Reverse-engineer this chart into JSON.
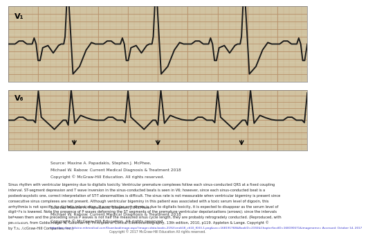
{
  "source_text_line1": "Source: Maxine A. Papadakis, Stephen J. McPhee,",
  "source_text_line2": "Michael W. Rabow: Current Medical Diagnosis & Treatment 2018",
  "source_text_line3": "Copyright © McGraw-Hill Education. All rights reserved.",
  "body_text_line1": "Sinus rhythm with ventricular bigeminy due to digitalis toxicity. Ventricular premature complexes follow each sinus-conducted QRS at a fixed coupling",
  "body_text_line2": "interval. ST-segment depression and T wave inversion in the sinus-conducted beats is seen in V6; however, since each sinus-conducted beat is a",
  "body_text_line3": "postextrasystolic one, correct interpretation of ST-T abnormalities is difficult. The sinus rate is not measurable when ventricular bigeminy is present since",
  "body_text_line4": "consecutive sinus complexes are not present. Although ventricular bigeminy in this patient was associated with a toxic serum level of digoxin, this",
  "body_text_line5": "arrhythmia is not specific for digitalis intoxication. If a ventricular arrhythmia is due to digitalis toxicity, it is expected to disappear as the serum level of",
  "body_text_line6": "digitalis is lowered. Note the presence of P waves deforming the ST segments of the premature ventricular depolarizations (arrows); since the intervals",
  "body_text_line7": "between them and the preceding sinus P waves is not half the measured sinus cycle length, they are probably retrogradely conducted. (Reproduced, with",
  "body_text_line8": "permission, from Goldschlager N, Goldman MJ: Principles of Clinical Electrocardiography, 13th edition, 2010, p119. Appleton & Lange. Copyright ©",
  "body_text_line9": "by The McGraw-Hill Companies, Inc.)",
  "source_text_overlap1": "Source: Maxine A. Papadakis, Stephen J. McPhee,",
  "source_text_overlap2": "Michael W. Rabow: Current Medical Diagnosis & Treatment 2018",
  "source_text_overlap3": "Copyright © McGraw-Hill Education. All rights reserved.",
  "url_text": "http://accessmedicine.mhmedical.com/Downloadimage.aspx?image=data.books.2192/cmdt18_ch10_f033-1.png&sec=168191768&BookID=2192&ChapterSectID=168190671&imagename= Accessed: October 14, 2017",
  "copyright_text": "Copyright © 2017 McGraw-Hill Education All rights reserved.",
  "ecg_bg": "#d4c9a8",
  "ecg_line_color": "#1a1a1a",
  "grid_minor_color": "#c8a882",
  "grid_major_color": "#b8906a",
  "v1_label": "V₁",
  "v6_label": "V₆",
  "bg_color": "#ffffff",
  "logo_red": "#cc0000",
  "text_color": "#222222",
  "source_color": "#333333",
  "url_color": "#3333cc",
  "copy_color": "#555555"
}
